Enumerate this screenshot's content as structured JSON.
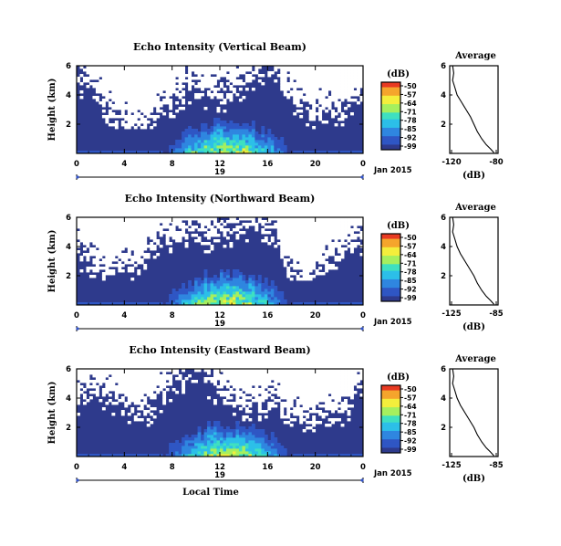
{
  "chart_data": [
    {
      "type": "heatmap",
      "title": "Echo Intensity (Vertical Beam)",
      "ylabel": "Height (km)",
      "yticks": [
        "2",
        "4",
        "6"
      ],
      "ylim": [
        0,
        6
      ],
      "xticks": [
        "0",
        "4",
        "8",
        "12",
        "16",
        "20",
        "0"
      ],
      "xlim": [
        0,
        24
      ],
      "date_label": "19",
      "month_label": "Jan 2015",
      "colorbar": {
        "unit": "(dB)",
        "labels": [
          "-50",
          "-57",
          "-64",
          "-71",
          "-78",
          "-85",
          "-92",
          "-99"
        ]
      },
      "average_profile": {
        "title": "Average",
        "xlabel": "(dB)",
        "xticks": [
          "-120",
          "-80"
        ],
        "xlim": [
          -120,
          -80
        ],
        "yticks": [
          "2",
          "4",
          "6"
        ],
        "ylim": [
          0,
          6
        ],
        "points": [
          [
            -82,
            0.05
          ],
          [
            -85,
            0.3
          ],
          [
            -89,
            0.6
          ],
          [
            -93,
            1.0
          ],
          [
            -97,
            1.5
          ],
          [
            -100,
            2.0
          ],
          [
            -103,
            2.5
          ],
          [
            -107,
            3.0
          ],
          [
            -111,
            3.5
          ],
          [
            -115,
            4.0
          ],
          [
            -117,
            4.5
          ],
          [
            -119,
            5.0
          ],
          [
            -118,
            5.5
          ],
          [
            -119,
            6.0
          ]
        ]
      }
    },
    {
      "type": "heatmap",
      "title": "Echo Intensity (Northward Beam)",
      "ylabel": "Height (km)",
      "yticks": [
        "2",
        "4",
        "6"
      ],
      "ylim": [
        0,
        6
      ],
      "xticks": [
        "0",
        "4",
        "8",
        "12",
        "16",
        "20",
        "0"
      ],
      "xlim": [
        0,
        24
      ],
      "date_label": "19",
      "month_label": "Jan 2015",
      "colorbar": {
        "unit": "(dB)",
        "labels": [
          "-50",
          "-57",
          "-64",
          "-71",
          "-78",
          "-85",
          "-92",
          "-99"
        ]
      },
      "average_profile": {
        "title": "Average",
        "xlabel": "(dB)",
        "xticks": [
          "-125",
          "-85"
        ],
        "xlim": [
          -125,
          -85
        ],
        "yticks": [
          "2",
          "4",
          "6"
        ],
        "ylim": [
          0,
          6
        ],
        "points": [
          [
            -87,
            0.05
          ],
          [
            -90,
            0.3
          ],
          [
            -94,
            0.6
          ],
          [
            -98,
            1.0
          ],
          [
            -102,
            1.5
          ],
          [
            -105,
            2.0
          ],
          [
            -109,
            2.5
          ],
          [
            -113,
            3.0
          ],
          [
            -117,
            3.5
          ],
          [
            -120,
            4.0
          ],
          [
            -122,
            4.5
          ],
          [
            -124,
            5.0
          ],
          [
            -123,
            5.5
          ],
          [
            -124,
            6.0
          ]
        ]
      }
    },
    {
      "type": "heatmap",
      "title": "Echo Intensity (Eastward Beam)",
      "ylabel": "Height (km)",
      "yticks": [
        "2",
        "4",
        "6"
      ],
      "ylim": [
        0,
        6
      ],
      "xticks": [
        "0",
        "4",
        "8",
        "12",
        "16",
        "20",
        "0"
      ],
      "xlim": [
        0,
        24
      ],
      "date_label": "19",
      "month_label": "Jan 2015",
      "xlabel": "Local Time",
      "colorbar": {
        "unit": "(dB)",
        "labels": [
          "-50",
          "-57",
          "-64",
          "-71",
          "-78",
          "-85",
          "-92",
          "-99"
        ]
      },
      "average_profile": {
        "title": "Average",
        "xlabel": "(dB)",
        "xticks": [
          "-125",
          "-85"
        ],
        "xlim": [
          -125,
          -85
        ],
        "yticks": [
          "2",
          "4",
          "6"
        ],
        "ylim": [
          0,
          6
        ],
        "points": [
          [
            -87,
            0.05
          ],
          [
            -90,
            0.3
          ],
          [
            -94,
            0.6
          ],
          [
            -98,
            1.0
          ],
          [
            -102,
            1.5
          ],
          [
            -105,
            2.0
          ],
          [
            -109,
            2.5
          ],
          [
            -113,
            3.0
          ],
          [
            -117,
            3.5
          ],
          [
            -120,
            4.0
          ],
          [
            -122,
            4.5
          ],
          [
            -124,
            5.0
          ],
          [
            -123,
            5.5
          ],
          [
            -124,
            6.0
          ]
        ]
      }
    }
  ],
  "colors": {
    "background_echo": "#2e3a8c",
    "colormap": [
      "#2e3a8c",
      "#2f56c4",
      "#2f86e0",
      "#2cbfe8",
      "#3fe0c0",
      "#a6ef5e",
      "#f4ee3c",
      "#f5a52c",
      "#e83a22"
    ]
  }
}
